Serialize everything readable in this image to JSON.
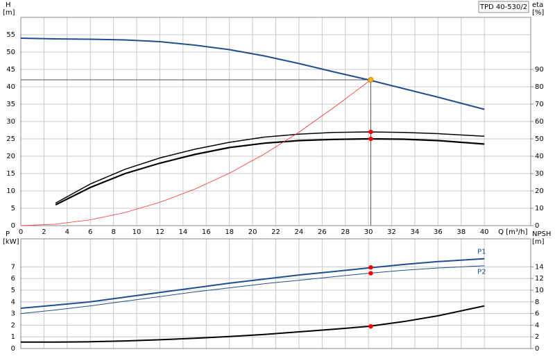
{
  "chart_data": [
    {
      "type": "line",
      "model": "TPD 40-530/2",
      "ylabel": "H",
      "yunit": "[m]",
      "y2label": "eta",
      "y2unit": "[%]",
      "xlabel": "Q [m³/h]",
      "xlim": [
        0,
        44
      ],
      "xticks": [
        0,
        2,
        4,
        6,
        8,
        10,
        12,
        14,
        16,
        18,
        20,
        22,
        24,
        26,
        28,
        30,
        32,
        34,
        36,
        38,
        40
      ],
      "ylim": [
        0,
        60
      ],
      "yticks": [
        0,
        5,
        10,
        15,
        20,
        25,
        30,
        35,
        40,
        45,
        50,
        55
      ],
      "y2lim": [
        0,
        120
      ],
      "y2ticks": [
        0,
        10,
        20,
        30,
        40,
        50,
        60,
        70,
        80,
        90
      ],
      "grid": true,
      "series": [
        {
          "name": "H",
          "color": "#1f4e8c",
          "line_width": 2,
          "axis": "y",
          "x": [
            0,
            3,
            6,
            9,
            12,
            15,
            18,
            21,
            24,
            27,
            30,
            33,
            36,
            40
          ],
          "values": [
            54,
            53.8,
            53.7,
            53.5,
            53,
            52,
            50.7,
            48.9,
            46.7,
            44.3,
            42,
            39.5,
            37,
            33.5
          ]
        },
        {
          "name": "eta",
          "color": "#000000",
          "line_width": 1.5,
          "axis": "y2",
          "x": [
            3,
            6,
            9,
            12,
            15,
            18,
            21,
            24,
            27,
            30,
            33,
            36,
            40
          ],
          "values": [
            13,
            24,
            32.5,
            39,
            44,
            48,
            51,
            52.7,
            53.7,
            54,
            53.7,
            53,
            51.5
          ]
        },
        {
          "name": "eta-total",
          "color": "#000000",
          "line_width": 2.2,
          "axis": "y2",
          "x": [
            3,
            6,
            9,
            12,
            15,
            18,
            21,
            24,
            27,
            30,
            33,
            36,
            40
          ],
          "values": [
            12,
            22,
            30,
            36,
            41,
            45,
            47.5,
            49,
            49.7,
            50,
            49.8,
            49,
            47
          ]
        },
        {
          "name": "system",
          "color": "#ff3030",
          "line_width": 0.8,
          "axis": "y",
          "x": [
            0,
            3,
            6,
            9,
            12,
            15,
            18,
            21,
            24,
            27,
            30.2
          ],
          "values": [
            0,
            0.42,
            1.68,
            3.78,
            6.72,
            10.5,
            15.1,
            20.6,
            26.9,
            34,
            42
          ]
        }
      ],
      "operating_point": {
        "x": 30.2,
        "y": 42,
        "color": "#f5b800"
      },
      "points": [
        {
          "x": 30.2,
          "y": 54,
          "axis": "y2",
          "color": "#ff0000"
        },
        {
          "x": 30.2,
          "y": 50,
          "axis": "y2",
          "color": "#ff0000"
        }
      ]
    },
    {
      "type": "line",
      "ylabel": "P",
      "yunit": "[kW]",
      "y2label": "NPSH",
      "y2unit": "[m]",
      "ylim": [
        0,
        9.4
      ],
      "yticks": [
        0,
        1,
        2,
        3,
        4,
        5,
        6,
        7
      ],
      "y2lim": [
        0,
        18.8
      ],
      "y2ticks": [
        0,
        2,
        4,
        6,
        8,
        10,
        12,
        14
      ],
      "grid": true,
      "series": [
        {
          "name": "P1",
          "color": "#1f4e8c",
          "line_width": 2,
          "axis": "y",
          "x": [
            0,
            3,
            6,
            9,
            12,
            15,
            18,
            21,
            24,
            27,
            30,
            33,
            36,
            40
          ],
          "values": [
            3.45,
            3.72,
            4,
            4.4,
            4.8,
            5.2,
            5.6,
            5.95,
            6.3,
            6.6,
            6.9,
            7.2,
            7.45,
            7.7
          ]
        },
        {
          "name": "P2",
          "color": "#1f4e8c",
          "line_width": 1,
          "axis": "y",
          "x": [
            0,
            3,
            6,
            9,
            12,
            15,
            18,
            21,
            24,
            27,
            30,
            33,
            36,
            40
          ],
          "values": [
            3,
            3.3,
            3.65,
            4.05,
            4.45,
            4.85,
            5.2,
            5.55,
            5.85,
            6.15,
            6.45,
            6.7,
            6.9,
            7.1
          ]
        },
        {
          "name": "NPSH",
          "color": "#000000",
          "line_width": 2,
          "axis": "y2",
          "x": [
            0,
            3,
            6,
            9,
            12,
            15,
            18,
            21,
            24,
            27,
            30,
            33,
            36,
            40
          ],
          "values": [
            1.1,
            1.1,
            1.15,
            1.3,
            1.5,
            1.75,
            2.05,
            2.4,
            2.85,
            3.3,
            3.8,
            4.6,
            5.6,
            7.3
          ]
        }
      ],
      "points": [
        {
          "x": 30.2,
          "y": 6.95,
          "axis": "y",
          "color": "#ff0000"
        },
        {
          "x": 30.2,
          "y": 6.45,
          "axis": "y",
          "color": "#ff0000"
        },
        {
          "x": 30.2,
          "y": 3.8,
          "axis": "y2",
          "color": "#ff0000"
        }
      ]
    }
  ]
}
